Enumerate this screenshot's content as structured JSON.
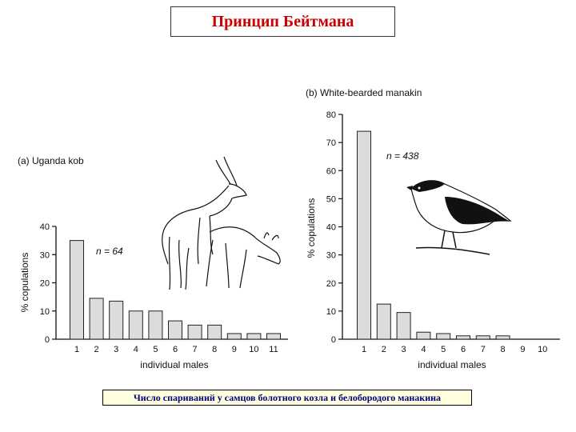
{
  "page": {
    "title": "Принцип Бейтмана",
    "caption": "Число спариваний у самцов болотного козла и белобородого манакина"
  },
  "chart_data": [
    {
      "type": "bar",
      "panel_label": "(a) Uganda kob",
      "sample_size": "n = 64",
      "categories": [
        "1",
        "2",
        "3",
        "4",
        "5",
        "6",
        "7",
        "8",
        "9",
        "10",
        "11"
      ],
      "values": [
        35,
        14.5,
        13.5,
        10,
        10,
        6.5,
        5,
        5,
        2,
        2,
        2
      ],
      "ylim": [
        0,
        40
      ],
      "yticks": [
        "0",
        "10",
        "20",
        "30",
        "40"
      ],
      "xlabel": "individual males",
      "ylabel": "% copulations",
      "grid": false,
      "illustration": "kob-antelope-drawing"
    },
    {
      "type": "bar",
      "panel_label": "(b) White-bearded manakin",
      "sample_size": "n = 438",
      "categories": [
        "1",
        "2",
        "3",
        "4",
        "5",
        "6",
        "7",
        "8",
        "9",
        "10"
      ],
      "values": [
        74,
        12.5,
        9.5,
        2.5,
        2,
        1.2,
        1.2,
        1.2,
        0,
        0
      ],
      "ylim": [
        0,
        80
      ],
      "yticks": [
        "0",
        "10",
        "20",
        "30",
        "40",
        "50",
        "60",
        "70",
        "80"
      ],
      "xlabel": "individual males",
      "ylabel": "% copulations",
      "grid": false,
      "illustration": "manakin-bird-drawing"
    }
  ]
}
